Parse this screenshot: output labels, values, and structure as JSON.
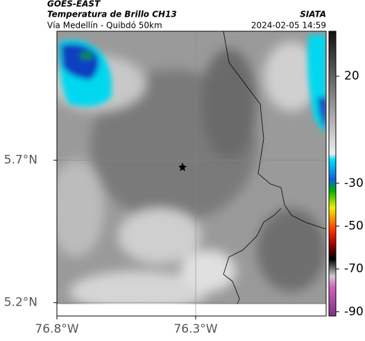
{
  "header": {
    "satellite": "GOES-EAST",
    "product": "Temperatura de Brillo CH13",
    "source": "SIATA",
    "region": "Vía Medellín - Quibdó 50km",
    "datetime": "2024-02-05 14:59"
  },
  "map": {
    "latlim": [
      5.153,
      6.153
    ],
    "lonlim": [
      -76.8,
      -75.83
    ],
    "yticks": [
      {
        "value": 5.7,
        "label": "5.7°N"
      },
      {
        "value": 5.2,
        "label": "5.2°N"
      }
    ],
    "xticks": [
      {
        "value": -76.8,
        "label": "76.8°W"
      },
      {
        "value": -76.3,
        "label": "76.3°W"
      }
    ],
    "grid": true
  },
  "colorbar": {
    "lim": [
      -92,
      41
    ],
    "ticks": [
      20,
      -30,
      -50,
      -70,
      -90
    ]
  }
}
